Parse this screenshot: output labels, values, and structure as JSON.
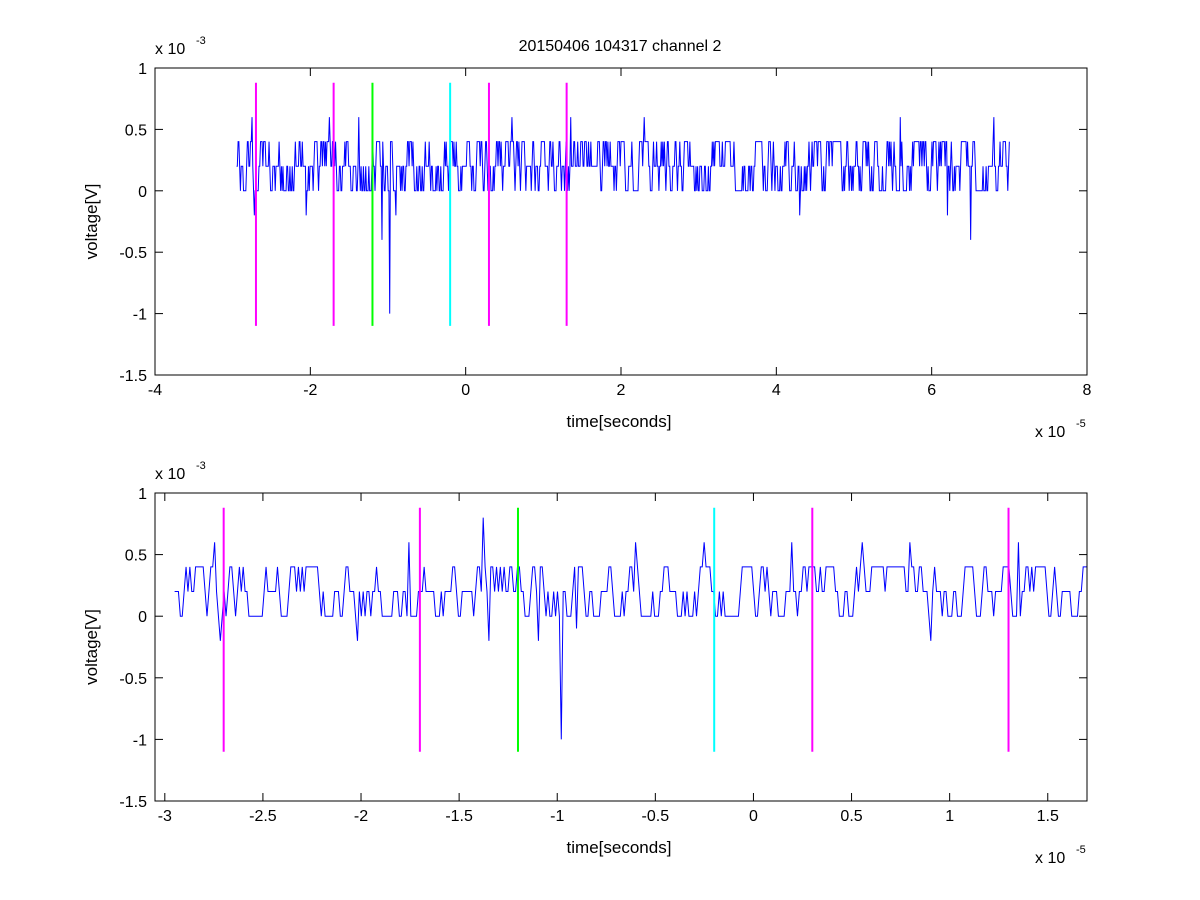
{
  "figure": {
    "title": "20150406 104317 channel 2"
  },
  "chart_data": [
    {
      "type": "line",
      "title": "20150406 104317 channel 2",
      "xlabel": "time[seconds]",
      "ylabel": "voltage[V]",
      "x_exponent_label": "x 10",
      "x_exponent": "-5",
      "y_exponent_label": "x 10",
      "y_exponent": "-3",
      "xlim": [
        -4e-05,
        8e-05
      ],
      "ylim": [
        -0.0015,
        0.001
      ],
      "x_ticks": [
        -4e-05,
        -2e-05,
        0,
        2e-05,
        4e-05,
        6e-05,
        8e-05
      ],
      "x_tick_labels": [
        "-4",
        "-2",
        "0",
        "2",
        "4",
        "6",
        "8"
      ],
      "y_ticks": [
        -0.0015,
        -0.001,
        -0.0005,
        0,
        0.0005,
        0.001
      ],
      "y_tick_labels": [
        "-1.5",
        "-1",
        "-0.5",
        "0",
        "0.5",
        "1"
      ],
      "grid": false,
      "signal": {
        "color": "#0000ff",
        "x_range": [
          -2.95e-05,
          7e-05
        ],
        "baseline_levels": [
          0,
          0.0002,
          0.0004
        ],
        "spikes": [
          {
            "x": -2.72e-05,
            "y": -0.0002
          },
          {
            "x": -2.75e-05,
            "y": 0.0006
          },
          {
            "x": -2.05e-05,
            "y": -0.0002
          },
          {
            "x": -1.75e-05,
            "y": 0.0006
          },
          {
            "x": -1.38e-05,
            "y": 0.0006
          },
          {
            "x": -1.2e-05,
            "y": 0.0004
          },
          {
            "x": -1.08e-05,
            "y": -0.0004
          },
          {
            "x": -9.8e-06,
            "y": -0.001
          },
          {
            "x": -9e-06,
            "y": -0.0002
          },
          {
            "x": 6e-06,
            "y": 0.0006
          },
          {
            "x": 1.35e-05,
            "y": 0.0006
          },
          {
            "x": 2.3e-05,
            "y": 0.0006
          },
          {
            "x": 4.3e-05,
            "y": -0.0002
          },
          {
            "x": 5.6e-05,
            "y": 0.0006
          },
          {
            "x": 6.2e-05,
            "y": -0.0002
          },
          {
            "x": 6.5e-05,
            "y": -0.0004
          },
          {
            "x": 6.8e-05,
            "y": 0.0006
          }
        ]
      },
      "markers": [
        {
          "x": -2.7e-05,
          "color": "#ff00ff",
          "y_range": [
            -0.0011,
            0.00088
          ]
        },
        {
          "x": -1.7e-05,
          "color": "#ff00ff",
          "y_range": [
            -0.0011,
            0.00088
          ]
        },
        {
          "x": -1.2e-05,
          "color": "#00ff00",
          "y_range": [
            -0.0011,
            0.00088
          ]
        },
        {
          "x": -2e-06,
          "color": "#00ffff",
          "y_range": [
            -0.0011,
            0.00088
          ]
        },
        {
          "x": 3e-06,
          "color": "#ff00ff",
          "y_range": [
            -0.0011,
            0.00088
          ]
        },
        {
          "x": 1.3e-05,
          "color": "#ff00ff",
          "y_range": [
            -0.0011,
            0.00088
          ]
        }
      ]
    },
    {
      "type": "line",
      "title": "",
      "xlabel": "time[seconds]",
      "ylabel": "voltage[V]",
      "x_exponent_label": "x 10",
      "x_exponent": "-5",
      "y_exponent_label": "x 10",
      "y_exponent": "-3",
      "xlim": [
        -3.05e-05,
        1.7e-05
      ],
      "ylim": [
        -0.0015,
        0.001
      ],
      "x_ticks": [
        -3e-05,
        -2.5e-05,
        -2e-05,
        -1.5e-05,
        -1e-05,
        -5e-06,
        0,
        5e-06,
        1e-05,
        1.5e-05
      ],
      "x_tick_labels": [
        "-3",
        "-2.5",
        "-2",
        "-1.5",
        "-1",
        "-0.5",
        "0",
        "0.5",
        "1",
        "1.5"
      ],
      "y_ticks": [
        -0.0015,
        -0.001,
        -0.0005,
        0,
        0.0005,
        0.001
      ],
      "y_tick_labels": [
        "-1.5",
        "-1",
        "-0.5",
        "0",
        "0.5",
        "1"
      ],
      "grid": false,
      "signal": {
        "color": "#0000ff",
        "x_range": [
          -2.95e-05,
          1.7e-05
        ],
        "baseline_levels": [
          0,
          0.0002,
          0.0004
        ],
        "spikes": [
          {
            "x": -2.72e-05,
            "y": -0.0002
          },
          {
            "x": -2.75e-05,
            "y": 0.0006
          },
          {
            "x": -2.02e-05,
            "y": -0.0002
          },
          {
            "x": -1.76e-05,
            "y": 0.0006
          },
          {
            "x": -1.38e-05,
            "y": 0.0008
          },
          {
            "x": -1.35e-05,
            "y": -0.0002
          },
          {
            "x": -1.1e-05,
            "y": -0.0002
          },
          {
            "x": -9.8e-06,
            "y": -0.001
          },
          {
            "x": -9e-06,
            "y": -0.0001
          },
          {
            "x": -6e-06,
            "y": 0.0006
          },
          {
            "x": -2.5e-06,
            "y": 0.0006
          },
          {
            "x": 2e-06,
            "y": 0.0006
          },
          {
            "x": 5.5e-06,
            "y": 0.0006
          },
          {
            "x": 9e-06,
            "y": -0.0002
          },
          {
            "x": 8e-06,
            "y": 0.0006
          },
          {
            "x": 1.35e-05,
            "y": 0.0006
          }
        ]
      },
      "markers": [
        {
          "x": -2.7e-05,
          "color": "#ff00ff",
          "y_range": [
            -0.0011,
            0.00088
          ]
        },
        {
          "x": -1.7e-05,
          "color": "#ff00ff",
          "y_range": [
            -0.0011,
            0.00088
          ]
        },
        {
          "x": -1.2e-05,
          "color": "#00ff00",
          "y_range": [
            -0.0011,
            0.00088
          ]
        },
        {
          "x": -2e-06,
          "color": "#00ffff",
          "y_range": [
            -0.0011,
            0.00088
          ]
        },
        {
          "x": 3e-06,
          "color": "#ff00ff",
          "y_range": [
            -0.0011,
            0.00088
          ]
        },
        {
          "x": 1.3e-05,
          "color": "#ff00ff",
          "y_range": [
            -0.0011,
            0.00088
          ]
        }
      ]
    }
  ]
}
